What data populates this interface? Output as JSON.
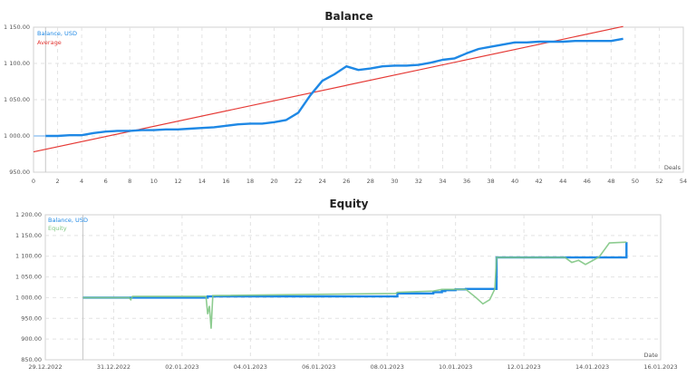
{
  "chart_data": [
    {
      "type": "line",
      "title": "Balance",
      "xlabel": "Deals",
      "ylabel": "",
      "xlim": [
        0,
        54
      ],
      "ylim": [
        950,
        1150
      ],
      "grid": true,
      "legend_position": "top-left inside",
      "legend": [
        "Balance, USD",
        "Average"
      ],
      "x_ticks": [
        0,
        2,
        4,
        6,
        8,
        10,
        12,
        14,
        16,
        18,
        20,
        22,
        24,
        26,
        28,
        30,
        32,
        34,
        36,
        38,
        40,
        42,
        44,
        46,
        48,
        50,
        52,
        54
      ],
      "y_ticks": [
        "950.00",
        "1 000.00",
        "1 050.00",
        "1 100.00",
        "1 150.00"
      ],
      "series": [
        {
          "name": "Balance, USD",
          "color": "#1e88e5",
          "x": [
            1,
            2,
            3,
            4,
            5,
            6,
            7,
            8,
            9,
            10,
            11,
            12,
            13,
            14,
            15,
            16,
            17,
            18,
            19,
            20,
            21,
            22,
            23,
            24,
            25,
            26,
            27,
            28,
            29,
            30,
            31,
            32,
            33,
            34,
            35,
            36,
            37,
            38,
            39,
            40,
            41,
            42,
            43,
            44,
            45,
            46,
            47,
            48,
            49
          ],
          "values": [
            1000,
            1000,
            1001,
            1001,
            1004,
            1006,
            1007,
            1007,
            1008,
            1008,
            1009,
            1009,
            1010,
            1011,
            1012,
            1014,
            1016,
            1017,
            1017,
            1019,
            1022,
            1032,
            1056,
            1076,
            1085,
            1096,
            1091,
            1093,
            1096,
            1097,
            1097,
            1098,
            1101,
            1105,
            1107,
            1114,
            1120,
            1123,
            1126,
            1129,
            1129,
            1130,
            1130,
            1130,
            1131,
            1131,
            1131,
            1131,
            1134
          ]
        },
        {
          "name": "Average",
          "color": "#e53935",
          "x": [
            0,
            49
          ],
          "values": [
            978,
            1151
          ]
        }
      ]
    },
    {
      "type": "line",
      "title": "Equity",
      "xlabel": "Date",
      "ylabel": "",
      "ylim": [
        850,
        1200
      ],
      "grid": true,
      "legend_position": "top-left inside",
      "legend": [
        "Balance, USD",
        "Equity"
      ],
      "x_ticks": [
        "29.12.2022",
        "31.12.2022",
        "02.01.2023",
        "04.01.2023",
        "06.01.2023",
        "08.01.2023",
        "10.01.2023",
        "12.01.2023",
        "14.01.2023",
        "16.01.2023"
      ],
      "y_ticks": [
        "850.00",
        "900.00",
        "950.00",
        "1 000.00",
        "1 050.00",
        "1 100.00",
        "1 150.00",
        "1 200.00"
      ],
      "series": [
        {
          "name": "Balance, USD",
          "color": "#1e88e5",
          "x_days_from_29_12_2022": [
            1.1,
            4.7,
            4.75,
            10.25,
            10.3,
            11.35,
            11.6,
            11.7,
            12.0,
            12.3,
            13.15,
            13.2,
            17.0
          ],
          "values": [
            1000,
            1000,
            1003,
            1003,
            1010,
            1013,
            1016,
            1018,
            1020,
            1021,
            1021,
            1097,
            1134
          ]
        },
        {
          "name": "Equity",
          "color": "#81c784",
          "x_days_from_29_12_2022": [
            1.1,
            2.45,
            2.5,
            2.55,
            4.7,
            4.75,
            4.8,
            4.85,
            4.9,
            10.25,
            10.3,
            11.35,
            11.6,
            12.3,
            12.6,
            12.8,
            13.0,
            13.15,
            13.2,
            15.2,
            15.4,
            15.6,
            15.8,
            16.2,
            16.5,
            17.0
          ],
          "values": [
            1000,
            1000,
            995,
            1003,
            1003,
            960,
            980,
            925,
            1005,
            1010,
            1013,
            1016,
            1020,
            1020,
            1000,
            985,
            995,
            1021,
            1097,
            1097,
            1085,
            1090,
            1080,
            1098,
            1132,
            1134
          ]
        }
      ]
    }
  ],
  "charts": {
    "balance": {
      "title": "Balance",
      "legend_balance": "Balance, USD",
      "legend_average": "Average",
      "x_axis_name": "Deals",
      "colors": {
        "balance": "#1e88e5",
        "average": "#e53935"
      }
    },
    "equity": {
      "title": "Equity",
      "legend_balance": "Balance, USD",
      "legend_equity": "Equity",
      "x_axis_name": "Date",
      "colors": {
        "balance": "#1e88e5",
        "equity": "#81c784"
      }
    }
  }
}
